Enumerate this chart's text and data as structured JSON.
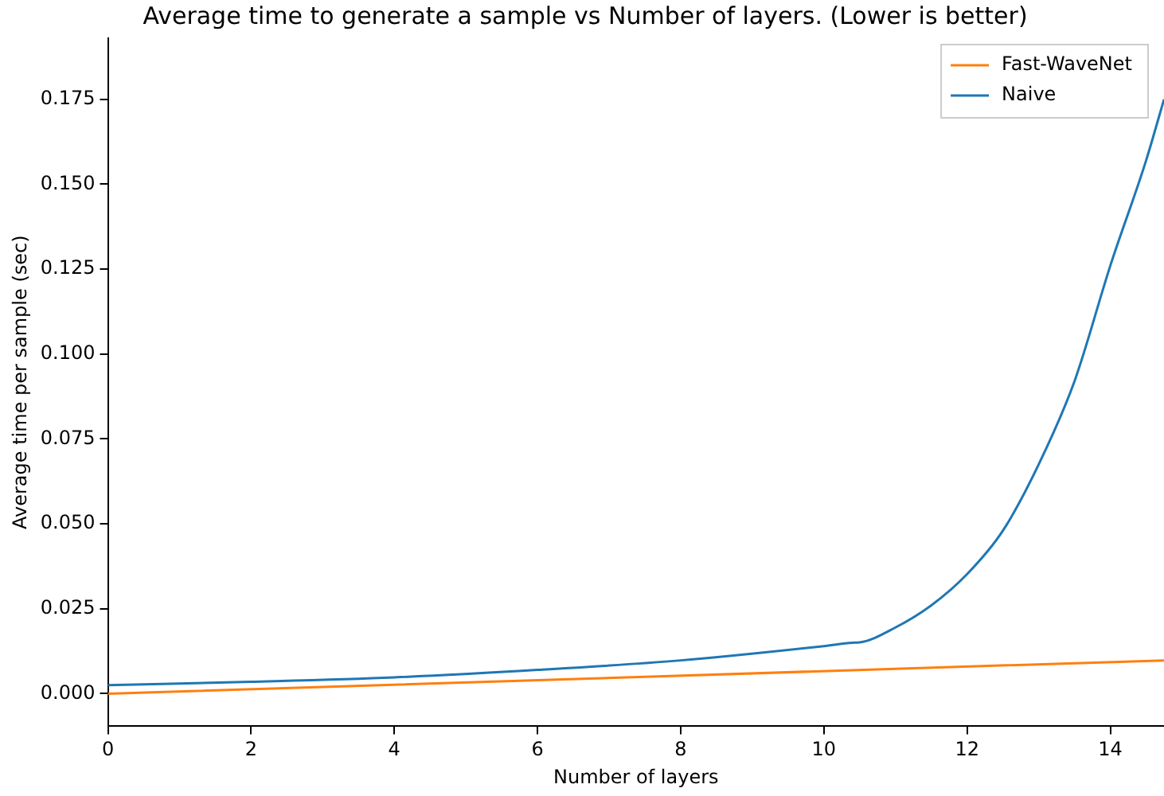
{
  "chart_data": {
    "type": "line",
    "title": "Average time to generate a sample vs Number of layers. (Lower is better)",
    "xlabel": "Number of layers",
    "ylabel": "Average time per sample (sec)",
    "xlim": [
      0,
      14.75
    ],
    "ylim": [
      -0.0096,
      0.193
    ],
    "xticks": [
      0,
      2,
      4,
      6,
      8,
      10,
      12,
      14
    ],
    "yticks": [
      {
        "value": 0,
        "label": "0.000"
      },
      {
        "value": 0.025,
        "label": "0.025"
      },
      {
        "value": 0.05,
        "label": "0.050"
      },
      {
        "value": 0.075,
        "label": "0.075"
      },
      {
        "value": 0.1,
        "label": "0.100"
      },
      {
        "value": 0.125,
        "label": "0.125"
      },
      {
        "value": 0.15,
        "label": "0.150"
      },
      {
        "value": 0.175,
        "label": "0.175"
      }
    ],
    "grid": false,
    "legend": "top right",
    "marker": "none",
    "line_style": "solid",
    "series": [
      {
        "name": "Fast-WaveNet",
        "color": "#ff7f0e",
        "x": [
          0,
          14.75
        ],
        "values": [
          0,
          0.0098
        ]
      },
      {
        "name": "Naive",
        "color": "#1f77b4",
        "x": [
          0,
          2,
          4,
          6,
          8,
          10,
          10.4,
          10.5,
          11,
          11.5,
          12,
          12.5,
          13,
          13.5,
          14,
          14.5,
          14.75
        ],
        "values": [
          0.0025,
          0.0035,
          0.0048,
          0.007,
          0.0098,
          0.014,
          0.015,
          0.0151,
          0.0195,
          0.026,
          0.0352,
          0.048,
          0.0675,
          0.092,
          0.126,
          0.157,
          0.175
        ]
      }
    ]
  }
}
